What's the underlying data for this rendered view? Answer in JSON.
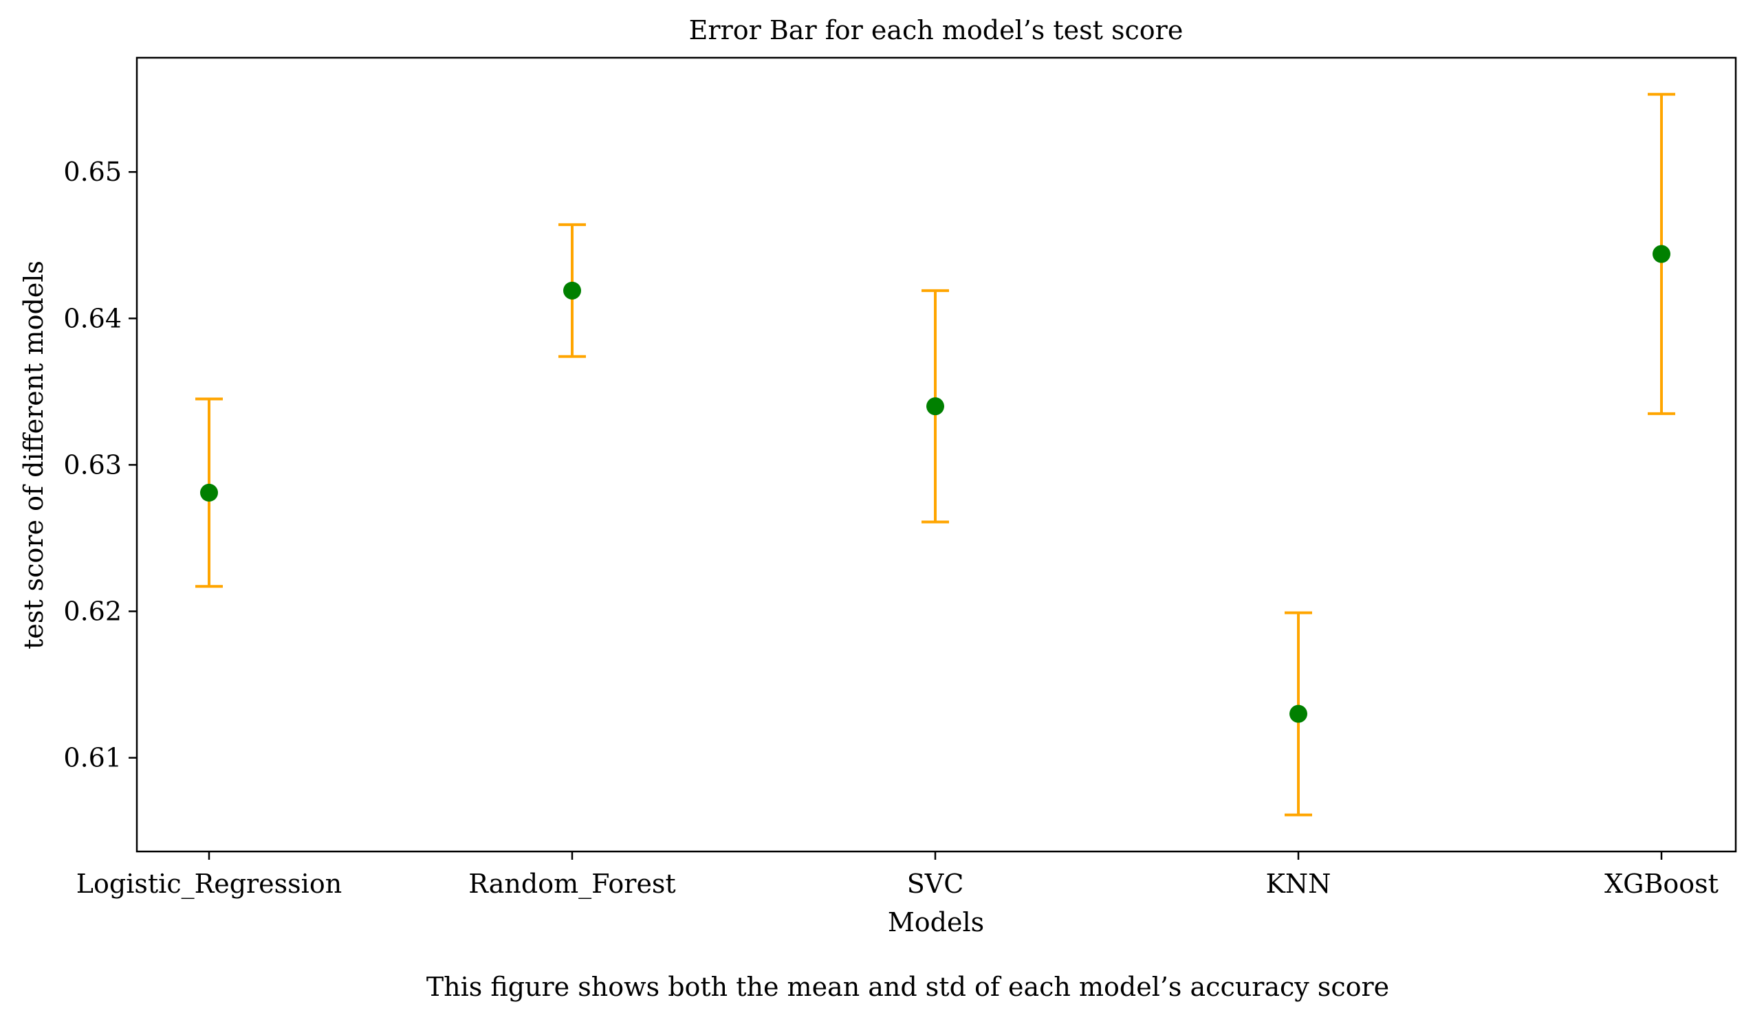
{
  "chart_data": {
    "type": "scatter",
    "title": "Error Bar for each model’s test score",
    "xlabel": "Models",
    "ylabel": "test score of different models",
    "caption": "This figure shows both the mean and std of each model’s accuracy score",
    "categories": [
      "Logistic_Regression",
      "Random_Forest",
      "SVC",
      "KNN",
      "XGBoost"
    ],
    "series": [
      {
        "values": [
          0.6281,
          0.6419,
          0.634,
          0.613,
          0.6444
        ],
        "errors": [
          0.0064,
          0.0045,
          0.0079,
          0.0069,
          0.0109
        ]
      }
    ],
    "ylim": [
      0.6036,
      0.6578
    ],
    "yticks": [
      0.61,
      0.62,
      0.63,
      0.64,
      0.65
    ],
    "ytick_labels": [
      "0.61",
      "0.62",
      "0.63",
      "0.64",
      "0.65"
    ],
    "grid": false,
    "marker_color": "#008000",
    "errorbar_color": "#FFA500"
  }
}
